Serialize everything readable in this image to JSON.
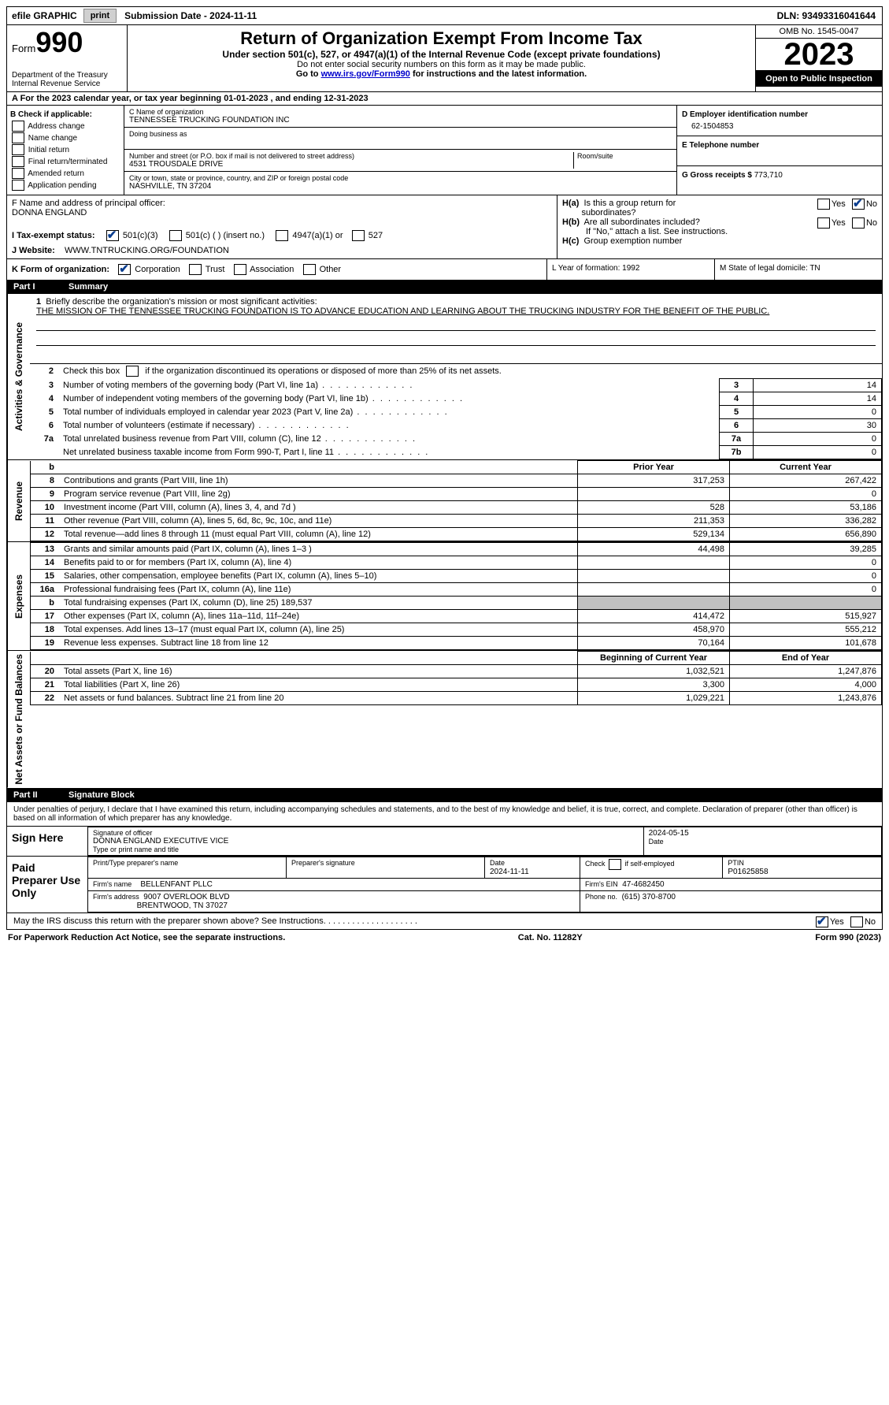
{
  "topbar": {
    "efile": "efile GRAPHIC",
    "print": "print",
    "submission": "Submission Date - 2024-11-11",
    "dln": "DLN: 93493316041644"
  },
  "header": {
    "form_word": "Form",
    "form_num": "990",
    "dept": "Department of the Treasury",
    "irs": "Internal Revenue Service",
    "title": "Return of Organization Exempt From Income Tax",
    "subtitle": "Under section 501(c), 527, or 4947(a)(1) of the Internal Revenue Code (except private foundations)",
    "note1": "Do not enter social security numbers on this form as it may be made public.",
    "note2_pre": "Go to ",
    "note2_link": "www.irs.gov/Form990",
    "note2_post": " for instructions and the latest information.",
    "omb": "OMB No. 1545-0047",
    "year": "2023",
    "inspect": "Open to Public Inspection"
  },
  "line_a": "A   For the 2023 calendar year, or tax year beginning 01-01-2023    , and ending 12-31-2023",
  "box_b": {
    "label": "B Check if applicable:",
    "opts": [
      "Address change",
      "Name change",
      "Initial return",
      "Final return/terminated",
      "Amended return",
      "Application pending"
    ]
  },
  "box_c": {
    "name_label": "C Name of organization",
    "name": "TENNESSEE TRUCKING FOUNDATION INC",
    "dba_label": "Doing business as",
    "addr_label": "Number and street (or P.O. box if mail is not delivered to street address)",
    "room_label": "Room/suite",
    "addr": "4531 TROUSDALE DRIVE",
    "city_label": "City or town, state or province, country, and ZIP or foreign postal code",
    "city": "NASHVILLE, TN  37204"
  },
  "box_d": {
    "label": "D Employer identification number",
    "val": "62-1504853"
  },
  "box_e": {
    "label": "E Telephone number"
  },
  "box_g": {
    "label": "G Gross receipts $",
    "val": "773,710"
  },
  "box_f": {
    "label": "F  Name and address of principal officer:",
    "name": "DONNA ENGLAND"
  },
  "box_h": {
    "a_label": "H(a)  Is this a group return for subordinates?",
    "b_label": "H(b)  Are all subordinates included?",
    "b_note": "If \"No,\" attach a list. See instructions.",
    "c_label": "H(c)  Group exemption number",
    "yes": "Yes",
    "no": "No"
  },
  "box_i": {
    "label": "I     Tax-exempt status:",
    "o1": "501(c)(3)",
    "o2": "501(c) (  ) (insert no.)",
    "o3": "4947(a)(1) or",
    "o4": "527"
  },
  "box_j": {
    "label": "J    Website:",
    "val": "WWW.TNTRUCKING.ORG/FOUNDATION"
  },
  "box_k": {
    "label": "K Form of organization:",
    "o1": "Corporation",
    "o2": "Trust",
    "o3": "Association",
    "o4": "Other"
  },
  "box_l": "L Year of formation: 1992",
  "box_m": "M State of legal domicile: TN",
  "parts": {
    "p1": "Part I",
    "p1_title": "Summary",
    "p2": "Part II",
    "p2_title": "Signature Block"
  },
  "vtabs": {
    "gov": "Activities & Governance",
    "rev": "Revenue",
    "exp": "Expenses",
    "net": "Net Assets or Fund Balances"
  },
  "summary": {
    "l1_label": "Briefly describe the organization's mission or most significant activities:",
    "l1_text": "THE MISSION OF THE TENNESSEE TRUCKING FOUNDATION IS TO ADVANCE EDUCATION AND LEARNING ABOUT THE TRUCKING INDUSTRY FOR THE BENEFIT OF THE PUBLIC.",
    "l2": "Check this box         if the organization discontinued its operations or disposed of more than 25% of its net assets.",
    "rows_gov": [
      {
        "n": "3",
        "t": "Number of voting members of the governing body (Part VI, line 1a)",
        "box": "3",
        "v": "14"
      },
      {
        "n": "4",
        "t": "Number of independent voting members of the governing body (Part VI, line 1b)",
        "box": "4",
        "v": "14"
      },
      {
        "n": "5",
        "t": "Total number of individuals employed in calendar year 2023 (Part V, line 2a)",
        "box": "5",
        "v": "0"
      },
      {
        "n": "6",
        "t": "Total number of volunteers (estimate if necessary)",
        "box": "6",
        "v": "30"
      },
      {
        "n": "7a",
        "t": "Total unrelated business revenue from Part VIII, column (C), line 12",
        "box": "7a",
        "v": "0"
      },
      {
        "n": "",
        "t": "Net unrelated business taxable income from Form 990-T, Part I, line 11",
        "box": "7b",
        "v": "0"
      }
    ],
    "hdr_prior": "Prior Year",
    "hdr_current": "Current Year",
    "rows_rev": [
      {
        "n": "8",
        "t": "Contributions and grants (Part VIII, line 1h)",
        "p": "317,253",
        "c": "267,422"
      },
      {
        "n": "9",
        "t": "Program service revenue (Part VIII, line 2g)",
        "p": "",
        "c": "0"
      },
      {
        "n": "10",
        "t": "Investment income (Part VIII, column (A), lines 3, 4, and 7d )",
        "p": "528",
        "c": "53,186"
      },
      {
        "n": "11",
        "t": "Other revenue (Part VIII, column (A), lines 5, 6d, 8c, 9c, 10c, and 11e)",
        "p": "211,353",
        "c": "336,282"
      },
      {
        "n": "12",
        "t": "Total revenue—add lines 8 through 11 (must equal Part VIII, column (A), line 12)",
        "p": "529,134",
        "c": "656,890"
      }
    ],
    "rows_exp": [
      {
        "n": "13",
        "t": "Grants and similar amounts paid (Part IX, column (A), lines 1–3 )",
        "p": "44,498",
        "c": "39,285"
      },
      {
        "n": "14",
        "t": "Benefits paid to or for members (Part IX, column (A), line 4)",
        "p": "",
        "c": "0"
      },
      {
        "n": "15",
        "t": "Salaries, other compensation, employee benefits (Part IX, column (A), lines 5–10)",
        "p": "",
        "c": "0"
      },
      {
        "n": "16a",
        "t": "Professional fundraising fees (Part IX, column (A), line 11e)",
        "p": "",
        "c": "0"
      },
      {
        "n": "b",
        "t": "Total fundraising expenses (Part IX, column (D), line 25) 189,537",
        "p": "GREY",
        "c": "GREY"
      },
      {
        "n": "17",
        "t": "Other expenses (Part IX, column (A), lines 11a–11d, 11f–24e)",
        "p": "414,472",
        "c": "515,927"
      },
      {
        "n": "18",
        "t": "Total expenses. Add lines 13–17 (must equal Part IX, column (A), line 25)",
        "p": "458,970",
        "c": "555,212"
      },
      {
        "n": "19",
        "t": "Revenue less expenses. Subtract line 18 from line 12",
        "p": "70,164",
        "c": "101,678"
      }
    ],
    "hdr_beg": "Beginning of Current Year",
    "hdr_end": "End of Year",
    "rows_net": [
      {
        "n": "20",
        "t": "Total assets (Part X, line 16)",
        "p": "1,032,521",
        "c": "1,247,876"
      },
      {
        "n": "21",
        "t": "Total liabilities (Part X, line 26)",
        "p": "3,300",
        "c": "4,000"
      },
      {
        "n": "22",
        "t": "Net assets or fund balances. Subtract line 21 from line 20",
        "p": "1,029,221",
        "c": "1,243,876"
      }
    ]
  },
  "sig": {
    "declare": "Under penalties of perjury, I declare that I have examined this return, including accompanying schedules and statements, and to the best of my knowledge and belief, it is true, correct, and complete. Declaration of preparer (other than officer) is based on all information of which preparer has any knowledge.",
    "sign_here": "Sign Here",
    "sig_officer": "Signature of officer",
    "sig_name": "DONNA ENGLAND  EXECUTIVE VICE",
    "sig_title": "Type or print name and title",
    "date": "Date",
    "date_v": "2024-05-15",
    "paid": "Paid Preparer Use Only",
    "p_name": "Print/Type preparer's name",
    "p_sig": "Preparer's signature",
    "p_date": "Date",
    "p_date_v": "2024-11-11",
    "p_check": "Check         if self-employed",
    "ptin": "PTIN",
    "ptin_v": "P01625858",
    "firm_name": "Firm's name",
    "firm_name_v": "BELLENFANT PLLC",
    "firm_ein": "Firm's EIN",
    "firm_ein_v": "47-4682450",
    "firm_addr": "Firm's address",
    "firm_addr_v1": "9007 OVERLOOK BLVD",
    "firm_addr_v2": "BRENTWOOD, TN  37027",
    "phone": "Phone no.",
    "phone_v": "(615) 370-8700",
    "may": "May the IRS discuss this return with the preparer shown above? See Instructions.  .  .  .  .  .  .  .  .  .  .  .  .  .  .  .  .  .  .  .",
    "yes": "Yes",
    "no": "No"
  },
  "footer": {
    "left": "For Paperwork Reduction Act Notice, see the separate instructions.",
    "mid": "Cat. No. 11282Y",
    "right": "Form 990 (2023)"
  }
}
